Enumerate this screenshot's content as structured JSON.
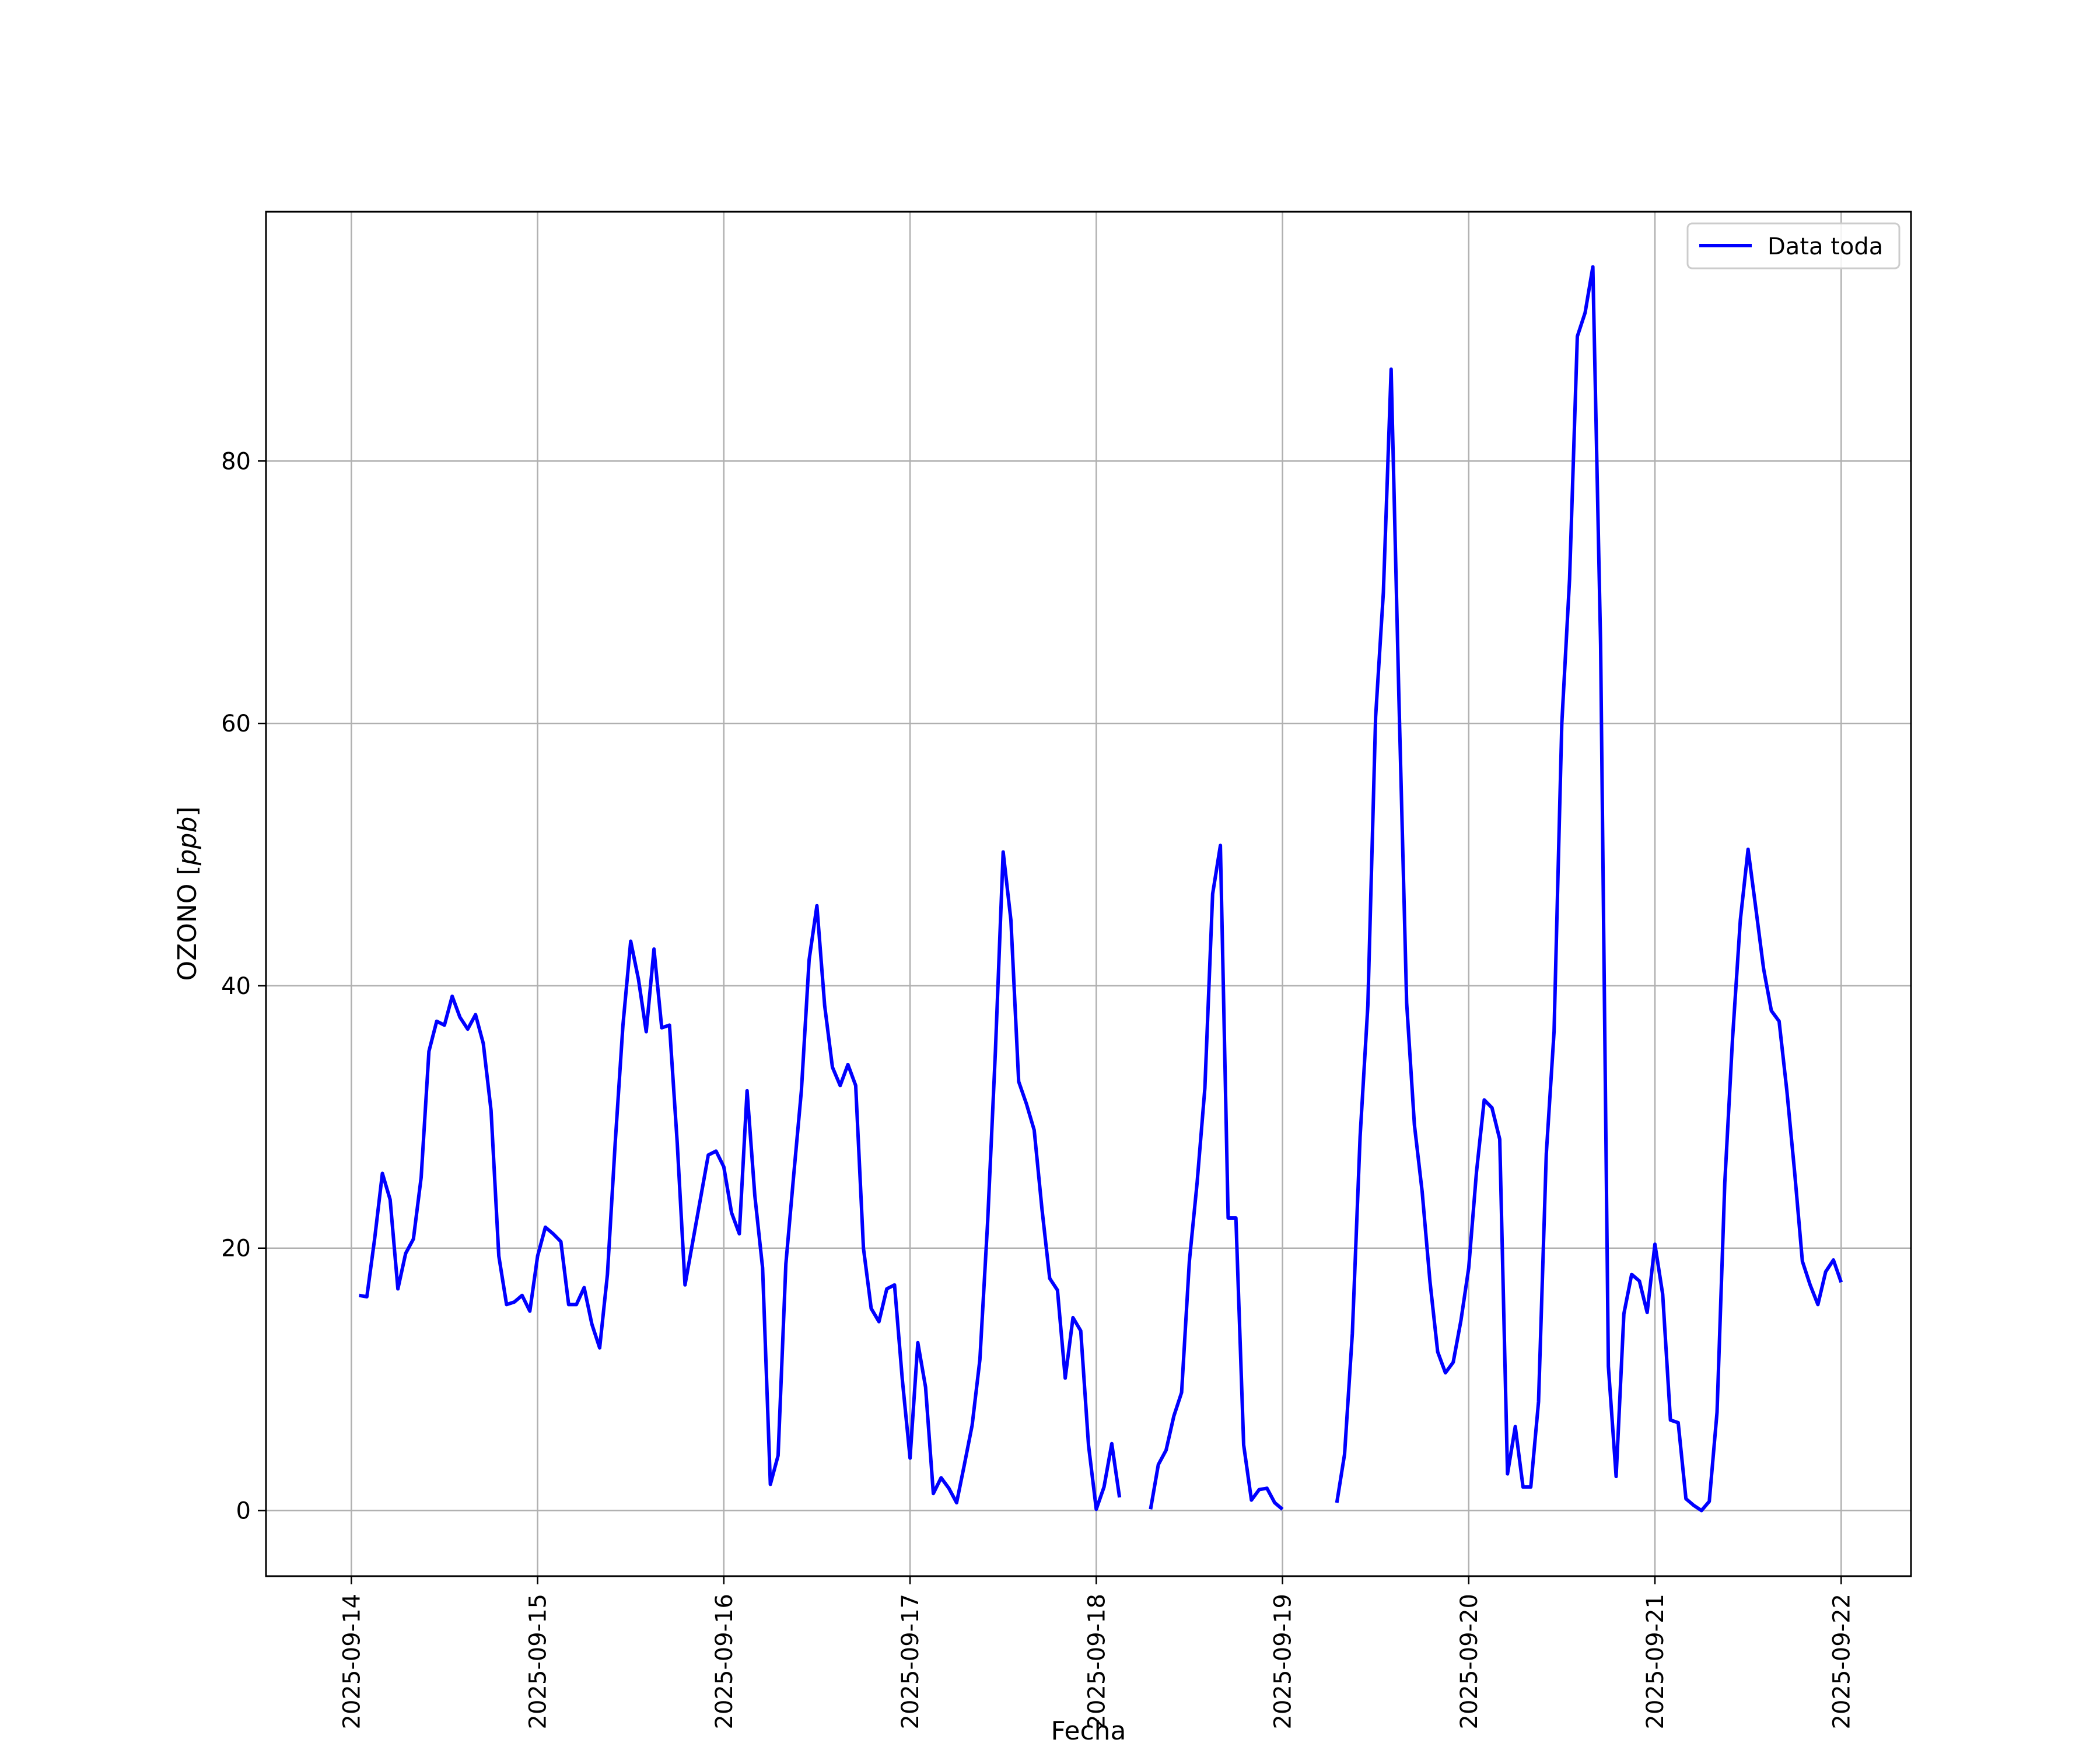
{
  "chart_data": {
    "type": "line",
    "title": "",
    "xlabel": "Fecha",
    "ylabel_prefix": "OZONO [",
    "ylabel_unit": "ppb",
    "ylabel_suffix": "]",
    "xlim": [
      "2025-09-13 13:00",
      "2025-09-22 09:00"
    ],
    "ylim": [
      -5,
      99
    ],
    "x_ticks": [
      "2025-09-14",
      "2025-09-15",
      "2025-09-16",
      "2025-09-17",
      "2025-09-18",
      "2025-09-19",
      "2025-09-20",
      "2025-09-21",
      "2025-09-22"
    ],
    "y_ticks": [
      0,
      20,
      40,
      60,
      80
    ],
    "grid": true,
    "legend_position": "top-right",
    "colors": {
      "series": "#0000ff",
      "grid": "#b0b0b0",
      "axes": "#000000"
    },
    "series": [
      {
        "name": "Data toda",
        "points": [
          [
            "2025-09-14 01:00",
            16.4
          ],
          [
            "2025-09-14 02:00",
            16.3
          ],
          [
            "2025-09-14 03:00",
            20.7
          ],
          [
            "2025-09-14 04:00",
            25.7
          ],
          [
            "2025-09-14 05:00",
            23.7
          ],
          [
            "2025-09-14 06:00",
            16.9
          ],
          [
            "2025-09-14 07:00",
            19.6
          ],
          [
            "2025-09-14 08:00",
            20.7
          ],
          [
            "2025-09-14 09:00",
            25.4
          ],
          [
            "2025-09-14 10:00",
            35.0
          ],
          [
            "2025-09-14 11:00",
            37.3
          ],
          [
            "2025-09-14 12:00",
            37.0
          ],
          [
            "2025-09-14 13:00",
            39.2
          ],
          [
            "2025-09-14 14:00",
            37.6
          ],
          [
            "2025-09-14 15:00",
            36.7
          ],
          [
            "2025-09-14 16:00",
            37.8
          ],
          [
            "2025-09-14 17:00",
            35.6
          ],
          [
            "2025-09-14 18:00",
            30.5
          ],
          [
            "2025-09-14 19:00",
            19.4
          ],
          [
            "2025-09-14 20:00",
            15.7
          ],
          [
            "2025-09-14 21:00",
            15.9
          ],
          [
            "2025-09-14 22:00",
            16.4
          ],
          [
            "2025-09-14 23:00",
            15.2
          ],
          [
            "2025-09-15 00:00",
            19.4
          ],
          [
            "2025-09-15 01:00",
            21.6
          ],
          [
            "2025-09-15 02:00",
            21.1
          ],
          [
            "2025-09-15 03:00",
            20.5
          ],
          [
            "2025-09-15 04:00",
            15.7
          ],
          [
            "2025-09-15 05:00",
            15.7
          ],
          [
            "2025-09-15 06:00",
            17.0
          ],
          [
            "2025-09-15 07:00",
            14.2
          ],
          [
            "2025-09-15 08:00",
            12.4
          ],
          [
            "2025-09-15 09:00",
            18.0
          ],
          [
            "2025-09-15 10:00",
            28.0
          ],
          [
            "2025-09-15 11:00",
            37.0
          ],
          [
            "2025-09-15 12:00",
            43.4
          ],
          [
            "2025-09-15 13:00",
            40.5
          ],
          [
            "2025-09-15 14:00",
            36.5
          ],
          [
            "2025-09-15 15:00",
            42.8
          ],
          [
            "2025-09-15 16:00",
            36.8
          ],
          [
            "2025-09-15 17:00",
            37.0
          ],
          [
            "2025-09-15 18:00",
            28.0
          ],
          [
            "2025-09-15 19:00",
            17.2
          ],
          [
            "2025-09-15 20:00",
            20.5
          ],
          [
            "2025-09-15 21:00",
            23.8
          ],
          [
            "2025-09-15 22:00",
            27.1
          ],
          [
            "2025-09-15 23:00",
            27.4
          ],
          [
            "2025-09-16 00:00",
            26.2
          ],
          [
            "2025-09-16 01:00",
            22.7
          ],
          [
            "2025-09-16 02:00",
            21.1
          ],
          [
            "2025-09-16 03:00",
            32.0
          ],
          [
            "2025-09-16 04:00",
            24.0
          ],
          [
            "2025-09-16 05:00",
            18.5
          ],
          [
            "2025-09-16 06:00",
            2.0
          ],
          [
            "2025-09-16 07:00",
            4.2
          ],
          [
            "2025-09-16 08:00",
            18.8
          ],
          [
            "2025-09-16 09:00",
            25.5
          ],
          [
            "2025-09-16 10:00",
            32.0
          ],
          [
            "2025-09-16 11:00",
            42.0
          ],
          [
            "2025-09-16 12:00",
            46.1
          ],
          [
            "2025-09-16 13:00",
            38.5
          ],
          [
            "2025-09-16 14:00",
            33.8
          ],
          [
            "2025-09-16 15:00",
            32.4
          ],
          [
            "2025-09-16 16:00",
            34.0
          ],
          [
            "2025-09-16 17:00",
            32.4
          ],
          [
            "2025-09-16 18:00",
            20.0
          ],
          [
            "2025-09-16 19:00",
            15.4
          ],
          [
            "2025-09-16 20:00",
            14.4
          ],
          [
            "2025-09-16 21:00",
            16.9
          ],
          [
            "2025-09-16 22:00",
            17.2
          ],
          [
            "2025-09-16 23:00",
            10.0
          ],
          [
            "2025-09-17 00:00",
            4.0
          ],
          [
            "2025-09-17 01:00",
            12.8
          ],
          [
            "2025-09-17 02:00",
            9.4
          ],
          [
            "2025-09-17 03:00",
            1.3
          ],
          [
            "2025-09-17 04:00",
            2.5
          ],
          [
            "2025-09-17 05:00",
            1.7
          ],
          [
            "2025-09-17 06:00",
            0.6
          ],
          [
            "2025-09-17 07:00",
            3.5
          ],
          [
            "2025-09-17 08:00",
            6.5
          ],
          [
            "2025-09-17 09:00",
            11.5
          ],
          [
            "2025-09-17 10:00",
            22.0
          ],
          [
            "2025-09-17 11:00",
            35.0
          ],
          [
            "2025-09-17 12:00",
            50.2
          ],
          [
            "2025-09-17 13:00",
            45.0
          ],
          [
            "2025-09-17 14:00",
            32.7
          ],
          [
            "2025-09-17 15:00",
            31.0
          ],
          [
            "2025-09-17 16:00",
            29.0
          ],
          [
            "2025-09-17 17:00",
            23.0
          ],
          [
            "2025-09-17 18:00",
            17.7
          ],
          [
            "2025-09-17 19:00",
            16.8
          ],
          [
            "2025-09-17 20:00",
            10.1
          ],
          [
            "2025-09-17 21:00",
            14.7
          ],
          [
            "2025-09-17 22:00",
            13.7
          ],
          [
            "2025-09-17 23:00",
            5.0
          ],
          [
            "2025-09-18 00:00",
            0.1
          ],
          [
            "2025-09-18 01:00",
            1.8
          ],
          [
            "2025-09-18 02:00",
            5.1
          ],
          [
            "2025-09-18 03:00",
            1.0
          ],
          null,
          [
            "2025-09-18 07:00",
            0.1
          ],
          [
            "2025-09-18 08:00",
            3.5
          ],
          [
            "2025-09-18 09:00",
            4.6
          ],
          [
            "2025-09-18 10:00",
            7.2
          ],
          [
            "2025-09-18 11:00",
            9.0
          ],
          [
            "2025-09-18 12:00",
            19.0
          ],
          [
            "2025-09-18 13:00",
            25.0
          ],
          [
            "2025-09-18 14:00",
            32.2
          ],
          [
            "2025-09-18 15:00",
            47.0
          ],
          [
            "2025-09-18 16:00",
            50.7
          ],
          [
            "2025-09-18 17:00",
            22.3
          ],
          [
            "2025-09-18 18:00",
            22.3
          ],
          [
            "2025-09-18 19:00",
            5.0
          ],
          [
            "2025-09-18 20:00",
            0.8
          ],
          [
            "2025-09-18 21:00",
            1.6
          ],
          [
            "2025-09-18 22:00",
            1.7
          ],
          [
            "2025-09-18 23:00",
            0.6
          ],
          [
            "2025-09-19 00:00",
            0.1
          ],
          null,
          [
            "2025-09-19 07:00",
            0.6
          ],
          [
            "2025-09-19 08:00",
            4.3
          ],
          [
            "2025-09-19 09:00",
            13.5
          ],
          [
            "2025-09-19 10:00",
            28.5
          ],
          [
            "2025-09-19 11:00",
            38.5
          ],
          [
            "2025-09-19 12:00",
            60.5
          ],
          [
            "2025-09-19 13:00",
            70.0
          ],
          [
            "2025-09-19 14:00",
            87.0
          ],
          [
            "2025-09-19 15:00",
            62.0
          ],
          [
            "2025-09-19 16:00",
            38.7
          ],
          [
            "2025-09-19 17:00",
            29.4
          ],
          [
            "2025-09-19 18:00",
            24.3
          ],
          [
            "2025-09-19 19:00",
            17.5
          ],
          [
            "2025-09-19 20:00",
            12.1
          ],
          [
            "2025-09-19 21:00",
            10.5
          ],
          [
            "2025-09-19 22:00",
            11.3
          ],
          [
            "2025-09-19 23:00",
            14.5
          ],
          [
            "2025-09-20 00:00",
            18.5
          ],
          [
            "2025-09-20 01:00",
            25.8
          ],
          [
            "2025-09-20 02:00",
            31.3
          ],
          [
            "2025-09-20 03:00",
            30.7
          ],
          [
            "2025-09-20 04:00",
            28.3
          ],
          [
            "2025-09-20 05:00",
            2.8
          ],
          [
            "2025-09-20 06:00",
            6.4
          ],
          [
            "2025-09-20 07:00",
            1.8
          ],
          [
            "2025-09-20 08:00",
            1.8
          ],
          [
            "2025-09-20 09:00",
            8.3
          ],
          [
            "2025-09-20 10:00",
            27.2
          ],
          [
            "2025-09-20 11:00",
            36.5
          ],
          [
            "2025-09-20 12:00",
            60.0
          ],
          [
            "2025-09-20 13:00",
            71.0
          ],
          [
            "2025-09-20 14:00",
            89.5
          ],
          [
            "2025-09-20 15:00",
            91.3
          ],
          [
            "2025-09-20 16:00",
            94.8
          ],
          [
            "2025-09-20 17:00",
            66.0
          ],
          [
            "2025-09-20 18:00",
            11.0
          ],
          [
            "2025-09-20 19:00",
            2.6
          ],
          [
            "2025-09-20 20:00",
            15.0
          ],
          [
            "2025-09-20 21:00",
            18.0
          ],
          [
            "2025-09-20 22:00",
            17.5
          ],
          [
            "2025-09-20 23:00",
            15.1
          ],
          [
            "2025-09-21 00:00",
            20.3
          ],
          [
            "2025-09-21 01:00",
            16.5
          ],
          [
            "2025-09-21 02:00",
            6.9
          ],
          [
            "2025-09-21 03:00",
            6.7
          ],
          [
            "2025-09-21 04:00",
            0.9
          ],
          [
            "2025-09-21 05:00",
            0.4
          ],
          [
            "2025-09-21 06:00",
            0.0
          ],
          [
            "2025-09-21 07:00",
            0.7
          ],
          [
            "2025-09-21 08:00",
            7.5
          ],
          [
            "2025-09-21 09:00",
            25.0
          ],
          [
            "2025-09-21 10:00",
            36.0
          ],
          [
            "2025-09-21 11:00",
            45.0
          ],
          [
            "2025-09-21 12:00",
            50.4
          ],
          [
            "2025-09-21 13:00",
            45.9
          ],
          [
            "2025-09-21 14:00",
            41.3
          ],
          [
            "2025-09-21 15:00",
            38.1
          ],
          [
            "2025-09-21 16:00",
            37.3
          ],
          [
            "2025-09-21 17:00",
            32.0
          ],
          [
            "2025-09-21 18:00",
            25.8
          ],
          [
            "2025-09-21 19:00",
            19.0
          ],
          [
            "2025-09-21 20:00",
            17.2
          ],
          [
            "2025-09-21 21:00",
            15.7
          ],
          [
            "2025-09-21 22:00",
            18.2
          ],
          [
            "2025-09-21 23:00",
            19.1
          ],
          [
            "2025-09-22 00:00",
            17.4
          ]
        ]
      }
    ]
  }
}
